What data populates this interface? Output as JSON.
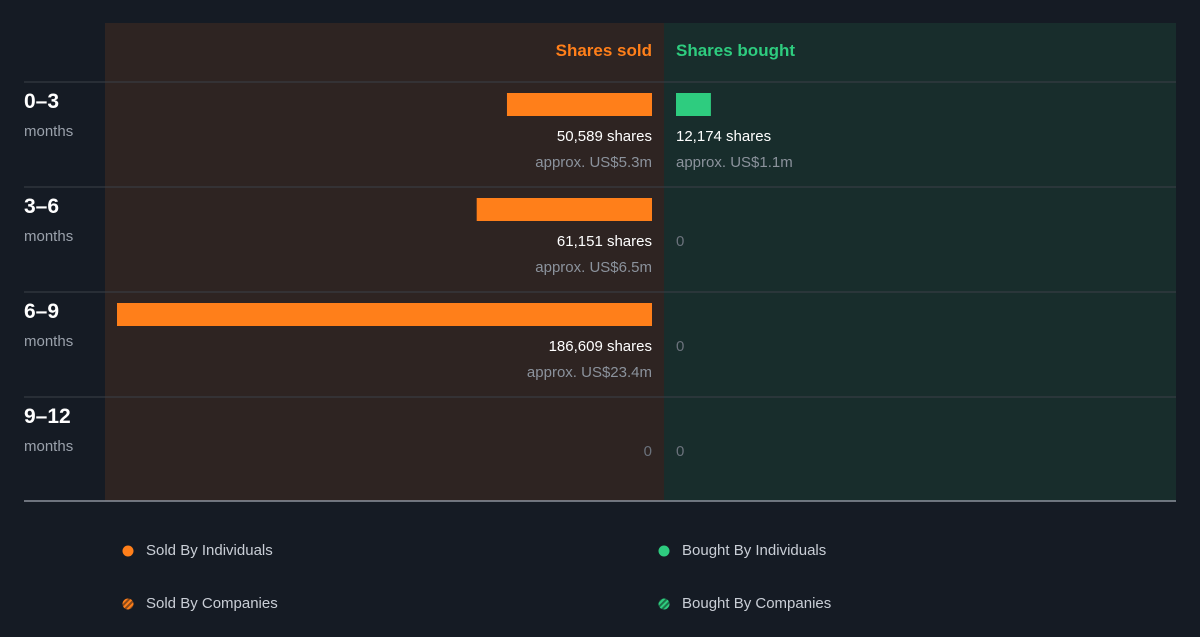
{
  "headers": {
    "sold": "Shares sold",
    "bought": "Shares bought"
  },
  "colors": {
    "sold": "#ff7f1a",
    "bought": "#2ecc7f",
    "sold_panel": "#2e2422",
    "bought_panel": "#182d2c",
    "background": "#151b24"
  },
  "legend": {
    "sold_individuals": "Sold By Individuals",
    "sold_companies": "Sold By Companies",
    "bought_individuals": "Bought By Individuals",
    "bought_companies": "Bought By Companies"
  },
  "chart_data": {
    "type": "bar",
    "categories": [
      "0–3 months",
      "3–6 months",
      "6–9 months",
      "9–12 months"
    ],
    "periods": [
      {
        "num": "0–3",
        "unit": "months"
      },
      {
        "num": "3–6",
        "unit": "months"
      },
      {
        "num": "6–9",
        "unit": "months"
      },
      {
        "num": "9–12",
        "unit": "months"
      }
    ],
    "series": [
      {
        "name": "Shares sold",
        "values": [
          50589,
          61151,
          186609,
          0
        ],
        "labels": [
          "50,589 shares",
          "61,151 shares",
          "186,609 shares",
          "0"
        ],
        "approx": [
          "approx. US$5.3m",
          "approx. US$6.5m",
          "approx. US$23.4m",
          ""
        ]
      },
      {
        "name": "Shares bought",
        "values": [
          12174,
          0,
          0,
          0
        ],
        "labels": [
          "12,174 shares",
          "0",
          "0",
          "0"
        ],
        "approx": [
          "approx. US$1.1m",
          "",
          "",
          ""
        ]
      }
    ]
  }
}
